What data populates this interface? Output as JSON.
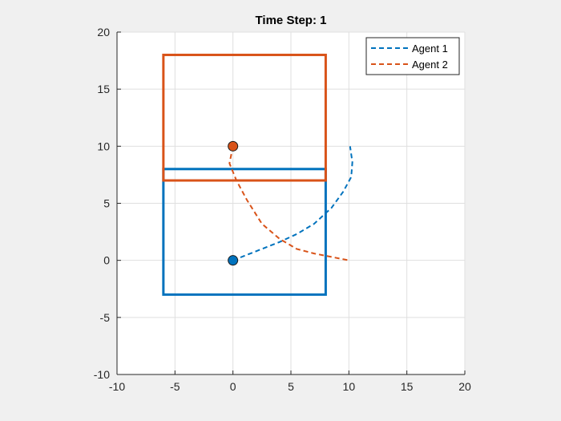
{
  "chart_data": {
    "type": "line",
    "title": "Time Step: 1",
    "xlabel": "",
    "ylabel": "",
    "xlim": [
      -10,
      20
    ],
    "ylim": [
      -10,
      20
    ],
    "xticks": [
      -10,
      -5,
      0,
      5,
      10,
      15,
      20
    ],
    "yticks": [
      -10,
      -5,
      0,
      5,
      10,
      15,
      20
    ],
    "grid": true,
    "legend_position": "top-right",
    "series": [
      {
        "name": "Agent 1",
        "color": "#0072BD",
        "style": "dashed",
        "x": [
          0,
          2,
          4,
          5.5,
          7,
          8.5,
          9.5,
          10.2,
          10.3,
          10.1
        ],
        "y": [
          0,
          0.8,
          1.6,
          2.3,
          3.2,
          4.6,
          6,
          7.3,
          8.6,
          10
        ],
        "marker": {
          "x": 0,
          "y": 0
        },
        "box": {
          "x0": -6,
          "x1": 8,
          "y0": -3,
          "y1": 8
        }
      },
      {
        "name": "Agent 2",
        "color": "#D95319",
        "style": "dashed",
        "x": [
          0,
          -0.3,
          0.3,
          1.2,
          2.5,
          4,
          5.5,
          7,
          8.5,
          10
        ],
        "y": [
          10,
          8.5,
          7,
          5.3,
          3.2,
          1.9,
          1,
          0.6,
          0.3,
          0
        ],
        "marker": {
          "x": 0,
          "y": 10
        },
        "box": {
          "x0": -6,
          "x1": 8,
          "y0": 7,
          "y1": 18
        }
      }
    ]
  }
}
